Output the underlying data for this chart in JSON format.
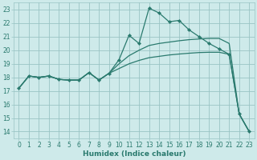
{
  "xlabel": "Humidex (Indice chaleur)",
  "bg_color": "#ceeaea",
  "grid_color": "#9ac4c4",
  "line_color": "#2a7a6e",
  "xlim": [
    -0.5,
    23.5
  ],
  "ylim": [
    13.5,
    23.5
  ],
  "xticks": [
    0,
    1,
    2,
    3,
    4,
    5,
    6,
    7,
    8,
    9,
    10,
    11,
    12,
    13,
    14,
    15,
    16,
    17,
    18,
    19,
    20,
    21,
    22,
    23
  ],
  "yticks": [
    14,
    15,
    16,
    17,
    18,
    19,
    20,
    21,
    22,
    23
  ],
  "line1_x": [
    0,
    1,
    2,
    3,
    4,
    5,
    6,
    7,
    8,
    9,
    10,
    11,
    12,
    13,
    14,
    15,
    16,
    17,
    18,
    19,
    20,
    21,
    22,
    23
  ],
  "line1_y": [
    17.2,
    18.1,
    18.0,
    18.1,
    17.85,
    17.8,
    17.8,
    18.35,
    17.8,
    18.3,
    19.3,
    21.1,
    20.5,
    23.1,
    22.75,
    22.1,
    22.2,
    21.5,
    21.0,
    20.5,
    20.1,
    19.7,
    15.3,
    14.0
  ],
  "line2_x": [
    0,
    1,
    2,
    3,
    4,
    5,
    6,
    7,
    8,
    9,
    10,
    11,
    12,
    13,
    14,
    15,
    16,
    17,
    18,
    19,
    20,
    21,
    22,
    23
  ],
  "line2_y": [
    17.2,
    18.1,
    18.0,
    18.1,
    17.85,
    17.8,
    17.8,
    18.35,
    17.8,
    18.3,
    18.65,
    19.0,
    19.25,
    19.45,
    19.55,
    19.65,
    19.72,
    19.78,
    19.83,
    19.85,
    19.85,
    19.7,
    15.3,
    14.0
  ],
  "line3_x": [
    0,
    1,
    2,
    3,
    4,
    5,
    6,
    7,
    8,
    9,
    10,
    11,
    12,
    13,
    14,
    15,
    16,
    17,
    18,
    19,
    20,
    21,
    22,
    23
  ],
  "line3_y": [
    17.2,
    18.1,
    18.0,
    18.1,
    17.85,
    17.8,
    17.8,
    18.35,
    17.8,
    18.3,
    19.0,
    19.6,
    20.0,
    20.35,
    20.5,
    20.6,
    20.7,
    20.78,
    20.83,
    20.87,
    20.87,
    20.5,
    15.3,
    14.0
  ],
  "tick_fontsize": 5.5,
  "xlabel_fontsize": 6.5
}
